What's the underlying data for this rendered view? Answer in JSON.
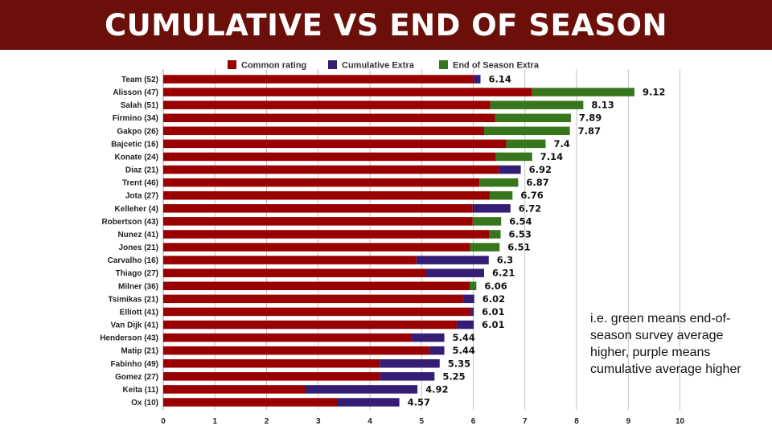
{
  "header": {
    "title": "CUMULATIVE VS END OF SEASON"
  },
  "note": "i.e. green means end-of-season survey average higher, purple means cumulative average higher",
  "colors": {
    "common": "#990000",
    "cumulative": "#351c75",
    "end_of_season": "#38761d",
    "title_bg": "#6b0f0b"
  },
  "chart_data": {
    "type": "bar",
    "orientation": "horizontal",
    "stacked": true,
    "legend_position": "top",
    "grid": true,
    "xlim": [
      0,
      10
    ],
    "xticks": [
      0,
      1,
      2,
      3,
      4,
      5,
      6,
      7,
      8,
      9,
      10
    ],
    "categories": [
      "Team (52)",
      "Alisson (47)",
      "Salah (51)",
      "Firmino (34)",
      "Gakpo (26)",
      "Bajcetic (16)",
      "Konate (24)",
      "Diaz (21)",
      "Trent (46)",
      "Jota (27)",
      "Kelleher (4)",
      "Robertson (43)",
      "Nunez (41)",
      "Jones (21)",
      "Carvalho (16)",
      "Thiago (27)",
      "Milner (36)",
      "Tsimikas (21)",
      "Elliott (41)",
      "Van Dijk (41)",
      "Henderson (43)",
      "Matip (21)",
      "Fabinho (49)",
      "Gomez (27)",
      "Keita (11)",
      "Ox (10)"
    ],
    "series": [
      {
        "name": "Common rating",
        "values": [
          6.01,
          7.14,
          6.33,
          6.42,
          6.21,
          6.64,
          6.44,
          6.5,
          6.12,
          6.32,
          5.99,
          5.99,
          6.31,
          5.94,
          4.9,
          5.09,
          5.93,
          5.8,
          5.95,
          5.68,
          4.8,
          5.15,
          4.19,
          4.2,
          2.74,
          3.37
        ]
      },
      {
        "name": "Cumulative Extra",
        "values": [
          0.13,
          0,
          0,
          0,
          0,
          0,
          0,
          0.42,
          0,
          0,
          0.73,
          0,
          0,
          0,
          1.4,
          1.12,
          0,
          0.22,
          0.06,
          0.33,
          0.64,
          0.29,
          1.16,
          1.05,
          2.18,
          1.2
        ]
      },
      {
        "name": "End of Season Extra",
        "values": [
          0,
          1.98,
          1.8,
          1.47,
          1.66,
          0.76,
          0.7,
          0,
          0.75,
          0.44,
          0,
          0.55,
          0.22,
          0.57,
          0,
          0,
          0.13,
          0,
          0,
          0,
          0,
          0,
          0,
          0,
          0,
          0
        ]
      }
    ],
    "totals": [
      "6.14",
      "9.12",
      "8.13",
      "7.89",
      "7.87",
      "7.4",
      "7.14",
      "6.92",
      "6.87",
      "6.76",
      "6.72",
      "6.54",
      "6.53",
      "6.51",
      "6.3",
      "6.21",
      "6.06",
      "6.02",
      "6.01",
      "6.01",
      "5.44",
      "5.44",
      "5.35",
      "5.25",
      "4.92",
      "4.57"
    ]
  }
}
